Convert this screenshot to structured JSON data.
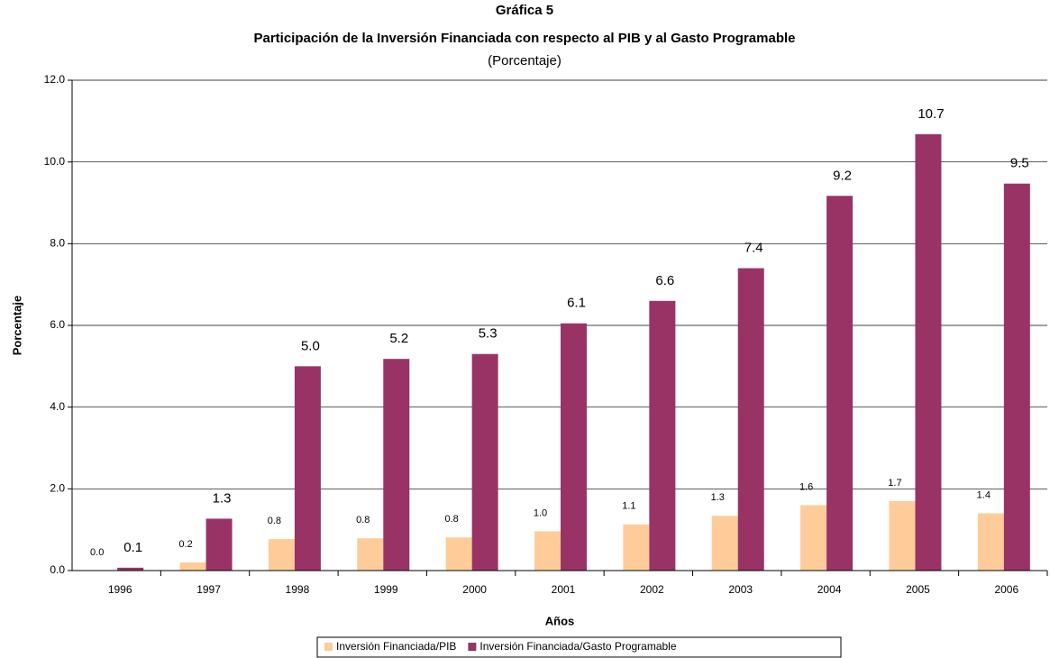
{
  "chart_data": {
    "type": "bar",
    "title": "Gráfica 5",
    "subtitle": "Participación de la Inversión Financiada con respecto al PIB y al Gasto Programable",
    "unit_note": "(Porcentaje)",
    "x_label": "Años",
    "y_label": "Porcentaje",
    "categories": [
      "1996",
      "1997",
      "1998",
      "1999",
      "2000",
      "2001",
      "2002",
      "2003",
      "2004",
      "2005",
      "2006"
    ],
    "series": [
      {
        "name": "Inversión Financiada/PIB",
        "color": "#ffcc99",
        "values": [
          0.0,
          0.2,
          0.77,
          0.79,
          0.81,
          0.96,
          1.13,
          1.34,
          1.6,
          1.7,
          1.4
        ],
        "value_labels": [
          "0.0",
          "0.2",
          "0.8",
          "0.8",
          "0.8",
          "1.0",
          "1.1",
          "1.3",
          "1.6",
          "1.7",
          "1.4"
        ]
      },
      {
        "name": "Inversión Financiada/Gasto Programable",
        "color": "#993366",
        "values": [
          0.07,
          1.27,
          5.0,
          5.18,
          5.3,
          6.05,
          6.6,
          7.4,
          9.17,
          10.68,
          9.47
        ],
        "value_labels": [
          "0.1",
          "1.3",
          "5.0",
          "5.2",
          "5.3",
          "6.1",
          "6.6",
          "7.4",
          "9.2",
          "10.7",
          "9.5"
        ]
      }
    ],
    "ylim": [
      0,
      12
    ],
    "yticks": [
      {
        "value": 0,
        "label": "0.0"
      },
      {
        "value": 2,
        "label": "2.0"
      },
      {
        "value": 4,
        "label": "4.0"
      },
      {
        "value": 6,
        "label": "6.0"
      },
      {
        "value": 8,
        "label": "8.0"
      },
      {
        "value": 10,
        "label": "10.0"
      },
      {
        "value": 12,
        "label": "12.0"
      }
    ],
    "grid": true,
    "legend": "bottom"
  }
}
